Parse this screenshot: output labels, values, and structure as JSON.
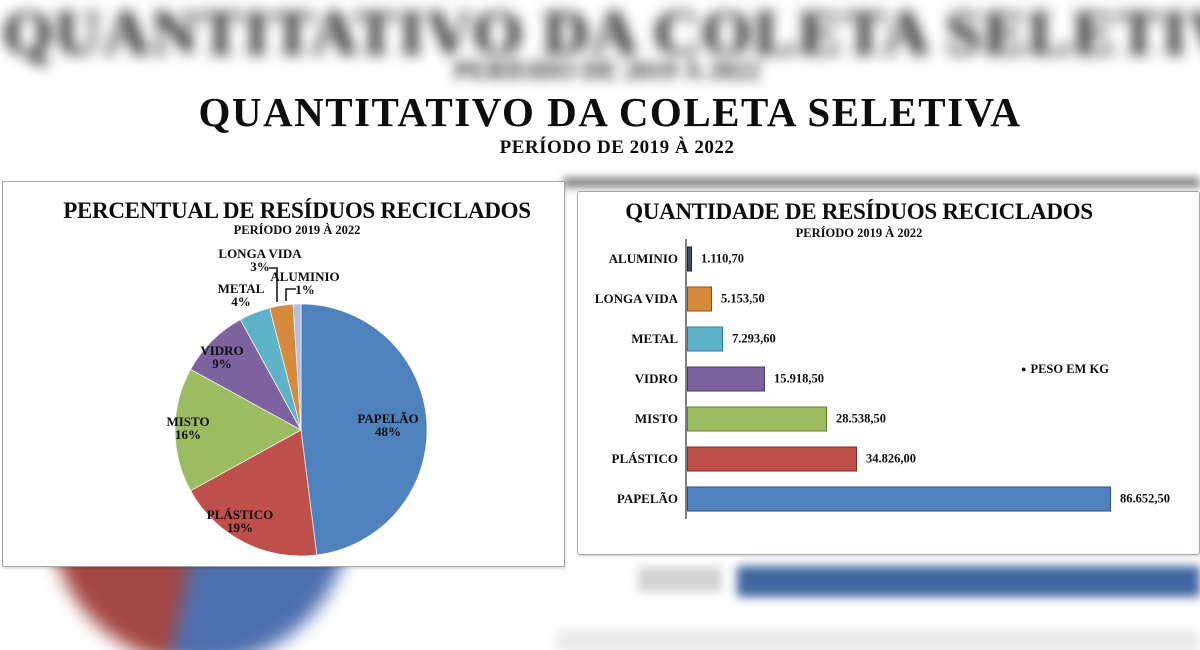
{
  "page": {
    "title": "QUANTITATIVO DA COLETA SELETIVA",
    "subtitle": "PERÍODO DE 2019 À 2022",
    "background": {
      "blurred_title": "QUANTITATIVO DA COLETA SELETIVA",
      "blurred_subtitle": "PERÍODO DE 2019 À 2022"
    }
  },
  "chart_data": [
    {
      "type": "pie",
      "title": "PERCENTUAL DE RESÍDUOS RECICLADOS",
      "subtitle": "PERÍODO 2019 À 2022",
      "unit": "%",
      "start_angle": "12-oclock-clockwise",
      "slices": [
        {
          "label": "PAPELÃO",
          "value_pct": 48,
          "color": "#4F81BD"
        },
        {
          "label": "PLÁSTICO",
          "value_pct": 19,
          "color": "#BE4F4B"
        },
        {
          "label": "MISTO",
          "value_pct": 16,
          "color": "#9DBB61"
        },
        {
          "label": "VIDRO",
          "value_pct": 9,
          "color": "#7D62A0"
        },
        {
          "label": "METAL",
          "value_pct": 4,
          "color": "#5FB3C9"
        },
        {
          "label": "LONGA VIDA",
          "value_pct": 3,
          "color": "#D68B3C"
        },
        {
          "label": "ALUMINIO",
          "value_pct": 1,
          "color": "#B0BFE2"
        }
      ]
    },
    {
      "type": "bar",
      "orientation": "horizontal",
      "title": "QUANTIDADE DE RESÍDUOS RECICLADOS",
      "subtitle": "PERÍODO 2019 À 2022",
      "legend": "PESO EM KG",
      "legend_marker": "dot",
      "gridlines": false,
      "xlim": [
        0,
        90000
      ],
      "categories": [
        "ALUMINIO",
        "LONGA VIDA",
        "METAL",
        "VIDRO",
        "MISTO",
        "PLÁSTICO",
        "PAPELÃO"
      ],
      "values": [
        1110.7,
        5153.5,
        7293.6,
        15918.5,
        28538.5,
        34826.0,
        86652.5
      ],
      "value_labels": [
        "1.110,70",
        "5.153,50",
        "7.293,60",
        "15.918,50",
        "28.538,50",
        "34.826,00",
        "86.652,50"
      ],
      "bar_colors": [
        "#3F4E66",
        "#D68B3C",
        "#5FB3C9",
        "#7D62A0",
        "#9DBB61",
        "#BE4F4B",
        "#4F81BD"
      ],
      "bar_border_colors": [
        "#1C2433",
        "#84511B",
        "#2E7D96",
        "#4A3A63",
        "#647A31",
        "#7E2E2C",
        "#2E4D74"
      ]
    }
  ]
}
